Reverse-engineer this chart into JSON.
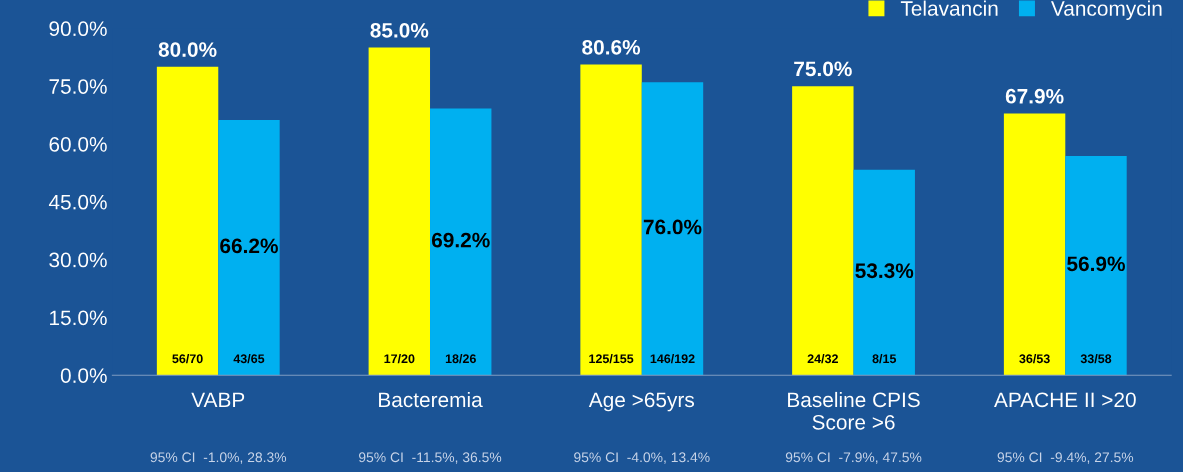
{
  "chart_data": {
    "type": "bar",
    "categories": [
      "VABP",
      "Bacteremia",
      "Age >65yrs",
      "Baseline CPIS\nScore >6",
      "APACHE II >20"
    ],
    "series": [
      {
        "name": "Telavancin",
        "color": "#ffff00",
        "values": [
          80.0,
          85.0,
          80.6,
          75.0,
          67.9
        ],
        "value_labels": [
          "80.0%",
          "85.0%",
          "80.6%",
          "75.0%",
          "67.9%"
        ]
      },
      {
        "name": "Vancomycin",
        "color": "#00b0f0",
        "values": [
          66.2,
          69.2,
          76.0,
          53.3,
          56.9
        ],
        "value_labels": [
          "66.2%",
          "69.2%",
          "76.0%",
          "53.3%",
          "56.9%"
        ]
      }
    ],
    "ylim": [
      0,
      90
    ],
    "yticks": [
      {
        "value": 0,
        "label": "0.0%"
      },
      {
        "value": 15,
        "label": "15.0%"
      },
      {
        "value": 30,
        "label": "30.0%"
      },
      {
        "value": 45,
        "label": "45.0%"
      },
      {
        "value": 60,
        "label": "60.0%"
      },
      {
        "value": 75,
        "label": "75.0%"
      },
      {
        "value": 90,
        "label": "90.0%"
      }
    ],
    "grid": false,
    "legend": "top right",
    "annotations": [
      "56/70",
      "43/65",
      "17/20",
      "18/26",
      "125/155",
      "146/192",
      "24/32",
      "8/15",
      "36/53",
      "33/58",
      "95% CI  -1.0%, 28.3%",
      "95% CI  -11.5%, 36.5%",
      "95% CI  -4.0%, 13.4%",
      "95% CI  -7.9%, 47.5%",
      "95% CI  -9.4%, 27.5%"
    ]
  }
}
